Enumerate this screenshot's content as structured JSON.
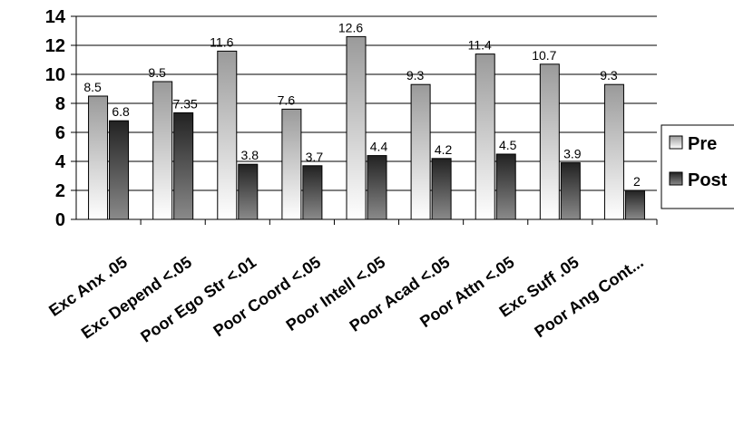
{
  "chart_data": {
    "type": "bar",
    "categories": [
      "Exc Anx .05",
      "Exc Depend <.05",
      "Poor Ego Str <.01",
      "Poor Coord <.05",
      "Poor Intell <.05",
      "Poor Acad <.05",
      "Poor Attn <.05",
      "Exc Suff .05",
      "Poor Ang Cont..."
    ],
    "series": [
      {
        "name": "Pre",
        "values": [
          8.5,
          9.5,
          11.6,
          7.6,
          12.6,
          9.3,
          11.4,
          10.7,
          9.3
        ],
        "labels": [
          "8.5",
          "9.5",
          "11.6",
          "7.6",
          "12.6",
          "9.3",
          "11.4",
          "10.7",
          "9.3"
        ],
        "color": "#b8b8b8"
      },
      {
        "name": "Post",
        "values": [
          6.8,
          7.35,
          3.8,
          3.7,
          4.4,
          4.2,
          4.5,
          3.9,
          2
        ],
        "labels": [
          "6.8",
          "7.35",
          "3.8",
          "3.7",
          "4.4",
          "4.2",
          "4.5",
          "3.9",
          "2"
        ],
        "color": "#3c3c3c"
      }
    ],
    "yticks": [
      "0",
      "2",
      "4",
      "6",
      "8",
      "10",
      "12",
      "14"
    ],
    "ylim": [
      0,
      14
    ],
    "grid": true,
    "legend": "right"
  }
}
